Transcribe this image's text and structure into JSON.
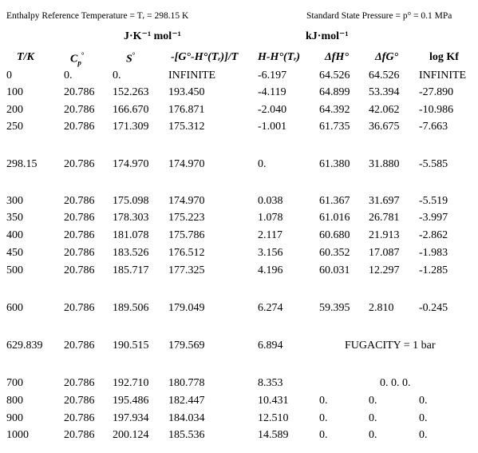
{
  "header": {
    "ref_temp": "Enthalpy Reference Temperature = Tᵣ = 298.15 K",
    "std_pressure": "Standard State Pressure = p° = 0.1 MPa",
    "units_left": "J·K⁻¹ mol⁻¹",
    "units_right": "kJ·mol⁻¹"
  },
  "columns": {
    "T": "T/K",
    "Cp": "C",
    "S": "S",
    "G": "-[G°-H°(Tᵣ)]/T",
    "H": "H-H°(Tᵣ)",
    "dfH": "ΔfH°",
    "dfG": "ΔfG°",
    "logKf": "log Kf"
  },
  "rows": [
    {
      "T": "0",
      "Cp": "0.",
      "S": "0.",
      "G": "INFINITE",
      "H": "-6.197",
      "dfH": "64.526",
      "dfG": "64.526",
      "logKf": "INFINITE"
    },
    {
      "T": "100",
      "Cp": "20.786",
      "S": "152.263",
      "G": "193.450",
      "H": "-4.119",
      "dfH": "64.899",
      "dfG": "53.394",
      "logKf": "-27.890"
    },
    {
      "T": "200",
      "Cp": "20.786",
      "S": "166.670",
      "G": "176.871",
      "H": "-2.040",
      "dfH": "64.392",
      "dfG": "42.062",
      "logKf": "-10.986"
    },
    {
      "T": "250",
      "Cp": "20.786",
      "S": "171.309",
      "G": "175.312",
      "H": "-1.001",
      "dfH": "61.735",
      "dfG": "36.675",
      "logKf": "-7.663"
    },
    {
      "T": "298.15",
      "Cp": "20.786",
      "S": "174.970",
      "G": "174.970",
      "H": "0.",
      "dfH": "61.380",
      "dfG": "31.880",
      "logKf": "-5.585"
    },
    {
      "T": "300",
      "Cp": "20.786",
      "S": "175.098",
      "G": "174.970",
      "H": "0.038",
      "dfH": "61.367",
      "dfG": "31.697",
      "logKf": "-5.519"
    },
    {
      "T": "350",
      "Cp": "20.786",
      "S": "178.303",
      "G": "175.223",
      "H": "1.078",
      "dfH": "61.016",
      "dfG": "26.781",
      "logKf": "-3.997"
    },
    {
      "T": "400",
      "Cp": "20.786",
      "S": "181.078",
      "G": "175.786",
      "H": "2.117",
      "dfH": "60.680",
      "dfG": "21.913",
      "logKf": "-2.862"
    },
    {
      "T": "450",
      "Cp": "20.786",
      "S": "183.526",
      "G": "176.512",
      "H": "3.156",
      "dfH": "60.352",
      "dfG": "17.087",
      "logKf": "-1.983"
    },
    {
      "T": "500",
      "Cp": "20.786",
      "S": "185.717",
      "G": "177.325",
      "H": "4.196",
      "dfH": "60.031",
      "dfG": "12.297",
      "logKf": "-1.285"
    },
    {
      "T": "600",
      "Cp": "20.786",
      "S": "189.506",
      "G": "179.049",
      "H": "6.274",
      "dfH": "59.395",
      "dfG": "2.810",
      "logKf": "-0.245"
    },
    {
      "T": "629.839",
      "Cp": "20.786",
      "S": "190.515",
      "G": "179.569",
      "H": "6.894",
      "note": "FUGACITY = 1 bar"
    },
    {
      "T": "700",
      "Cp": "20.786",
      "S": "192.710",
      "G": "180.778",
      "H": "8.353",
      "note": "0. 0. 0."
    },
    {
      "T": "800",
      "Cp": "20.786",
      "S": "195.486",
      "G": "182.447",
      "H": "10.431",
      "dfH": "0.",
      "dfG": "0.",
      "logKf": "0."
    },
    {
      "T": "900",
      "Cp": "20.786",
      "S": "197.934",
      "G": "184.034",
      "H": "12.510",
      "dfH": "0.",
      "dfG": "0.",
      "logKf": "0."
    },
    {
      "T": "1000",
      "Cp": "20.786",
      "S": "200.124",
      "G": "185.536",
      "H": "14.589",
      "dfH": "0.",
      "dfG": "0.",
      "logKf": "0."
    }
  ]
}
